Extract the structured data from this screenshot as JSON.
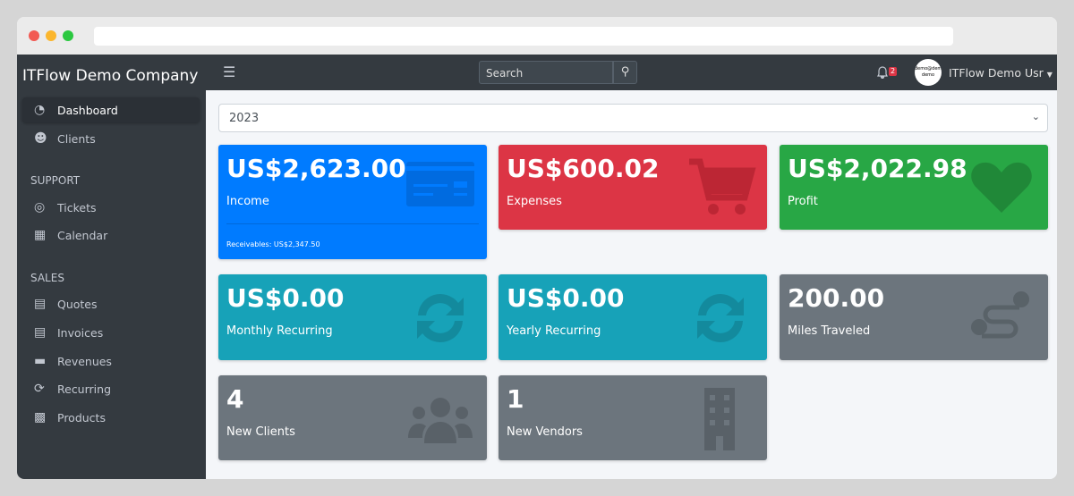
{
  "sidebar": {
    "brand": "ITFlow Demo Company",
    "items": [
      {
        "label": "Dashboard",
        "icon": "tachometer-icon"
      },
      {
        "label": "Clients",
        "icon": "users-icon"
      },
      {
        "label": "Tickets",
        "icon": "life-ring-icon"
      },
      {
        "label": "Calendar",
        "icon": "calendar-icon"
      },
      {
        "label": "Quotes",
        "icon": "file-icon"
      },
      {
        "label": "Invoices",
        "icon": "file-invoice-icon"
      },
      {
        "label": "Revenues",
        "icon": "credit-card-icon"
      },
      {
        "label": "Recurring",
        "icon": "sync-icon"
      },
      {
        "label": "Products",
        "icon": "box-icon"
      }
    ],
    "headers": [
      "SUPPORT",
      "SALES"
    ]
  },
  "topnav": {
    "search_placeholder": "Search",
    "notification_count": "2",
    "avatar_text": "demo@demo demo",
    "user": "ITFlow Demo Usr"
  },
  "main": {
    "year": "2023",
    "cards": [
      {
        "value": "US$2,623.00",
        "label": "Income",
        "footer": "Receivables: US$2,347.50",
        "color": "#007bff"
      },
      {
        "value": "US$600.02",
        "label": "Expenses",
        "color": "#dc3545"
      },
      {
        "value": "US$2,022.98",
        "label": "Profit",
        "color": "#28a745"
      },
      {
        "value": "US$0.00",
        "label": "Monthly Recurring",
        "color": "#17a2b8"
      },
      {
        "value": "US$0.00",
        "label": "Yearly Recurring",
        "color": "#17a2b8"
      },
      {
        "value": "200.00",
        "label": "Miles Traveled",
        "color": "#6c757d"
      },
      {
        "value": "4",
        "label": "New Clients",
        "color": "#6c757d"
      },
      {
        "value": "1",
        "label": "New Vendors",
        "color": "#6c757d"
      }
    ]
  }
}
